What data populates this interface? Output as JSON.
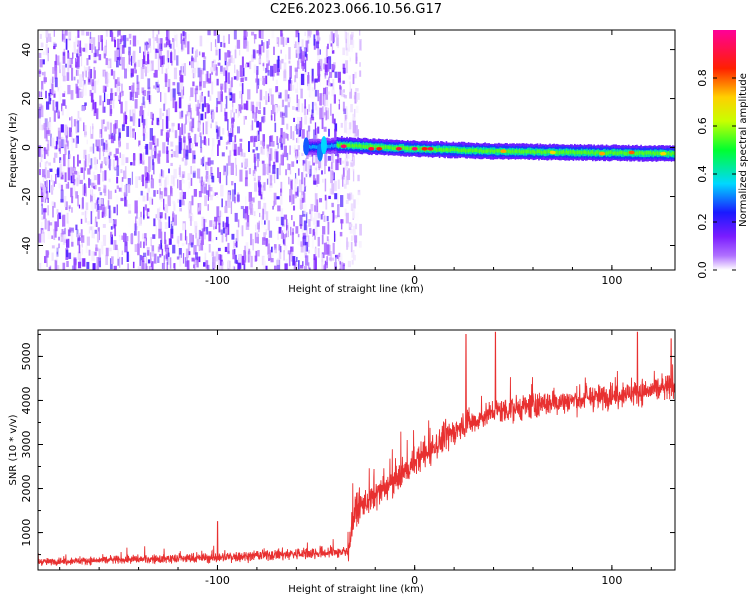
{
  "title": "C2E6.2023.066.10.56.G17",
  "chart_data": [
    {
      "type": "heatmap",
      "xlabel": "Height of straight line (km)",
      "ylabel": "Frequency (Hz)",
      "xlim": [
        -191,
        132
      ],
      "ylim": [
        -50,
        48
      ],
      "xticks": [
        "-100",
        "0",
        "100"
      ],
      "yticks": [
        "-40",
        "-20",
        "0",
        "20",
        "40"
      ],
      "colorbar": {
        "label": "Normalized spectral amplitude",
        "range": [
          0,
          1
        ],
        "ticks": [
          "0.0",
          "0.2",
          "0.4",
          "0.6",
          "0.8"
        ],
        "colors": [
          "#ffffff",
          "#9b30ff",
          "#2020ff",
          "#00e0ff",
          "#00ff00",
          "#ffff00",
          "#ff8000",
          "#ff0000",
          "#ff00aa"
        ]
      },
      "noise_region_x": [
        -191,
        -36
      ],
      "signal_track": [
        {
          "x": -55,
          "f": 0.0
        },
        {
          "x": -38,
          "f": 1.0
        },
        {
          "x": 0,
          "f": -0.5
        },
        {
          "x": 40,
          "f": -1.5
        },
        {
          "x": 80,
          "f": -2.0
        },
        {
          "x": 132,
          "f": -2.5
        }
      ],
      "peak_amplitude_points": [
        {
          "x": -36,
          "f": 0.5,
          "a": 0.95
        },
        {
          "x": -22,
          "f": -0.5,
          "a": 0.9
        },
        {
          "x": -18,
          "f": -0.5,
          "a": 0.85
        },
        {
          "x": -8,
          "f": -0.5,
          "a": 0.9
        },
        {
          "x": 0,
          "f": -0.5,
          "a": 0.95
        },
        {
          "x": 5,
          "f": -0.5,
          "a": 0.85
        },
        {
          "x": 8,
          "f": -0.5,
          "a": 0.9
        },
        {
          "x": 45,
          "f": -1.5,
          "a": 0.75
        },
        {
          "x": 70,
          "f": -2.0,
          "a": 0.7
        },
        {
          "x": 95,
          "f": -2.5,
          "a": 0.75
        },
        {
          "x": 110,
          "f": -2.0,
          "a": 0.8
        },
        {
          "x": 126,
          "f": -2.5,
          "a": 0.7
        }
      ]
    },
    {
      "type": "line",
      "xlabel": "Height of straight line (km)",
      "ylabel": "SNR (10 * v/v)",
      "xlim": [
        -191,
        132
      ],
      "ylim": [
        150,
        5600
      ],
      "xticks": [
        "-100",
        "0",
        "100"
      ],
      "yticks": [
        "1000",
        "2000",
        "3000",
        "4000",
        "5000"
      ],
      "color": "#e83030",
      "trend": [
        {
          "x": -191,
          "y": 330
        },
        {
          "x": -150,
          "y": 380
        },
        {
          "x": -100,
          "y": 430
        },
        {
          "x": -60,
          "y": 520
        },
        {
          "x": -34,
          "y": 560
        },
        {
          "x": -30,
          "y": 1500
        },
        {
          "x": -15,
          "y": 2000
        },
        {
          "x": 0,
          "y": 2600
        },
        {
          "x": 20,
          "y": 3300
        },
        {
          "x": 40,
          "y": 3750
        },
        {
          "x": 70,
          "y": 3950
        },
        {
          "x": 100,
          "y": 4100
        },
        {
          "x": 132,
          "y": 4300
        }
      ],
      "peaks": [
        {
          "x": -100,
          "y": 1250
        },
        {
          "x": 26,
          "y": 5500
        },
        {
          "x": 41,
          "y": 5550
        },
        {
          "x": 113,
          "y": 5550
        },
        {
          "x": 130,
          "y": 5400
        }
      ]
    }
  ]
}
